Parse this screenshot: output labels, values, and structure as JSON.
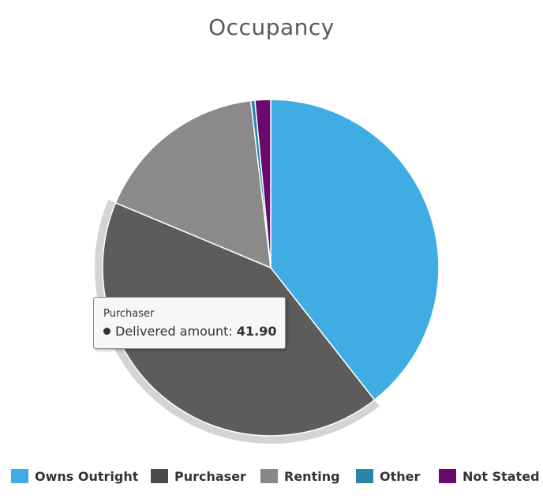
{
  "chart_data": {
    "type": "pie",
    "title": "Occupancy",
    "slices": [
      {
        "label": "Owns Outright",
        "value": 39.4,
        "color": "#3fade3"
      },
      {
        "label": "Purchaser",
        "value": 41.9,
        "color": "#5c5c5c"
      },
      {
        "label": "Renting",
        "value": 16.8,
        "color": "#8a8a8a"
      },
      {
        "label": "Other",
        "value": 0.4,
        "color": "#2b84aa"
      },
      {
        "label": "Not Stated",
        "value": 1.5,
        "color": "#6a0a6e"
      }
    ],
    "start_angle_deg": 0,
    "direction": "clockwise",
    "highlighted": "Purchaser",
    "legend_position": "bottom"
  },
  "tooltip": {
    "title": "Purchaser",
    "metric_label": "Delivered amount:",
    "value": "41.90"
  },
  "legend": {
    "items": [
      {
        "label": "Owns Outright",
        "color": "#3fade3"
      },
      {
        "label": "Purchaser",
        "color": "#4a4a4a"
      },
      {
        "label": "Renting",
        "color": "#888888"
      },
      {
        "label": "Other",
        "color": "#2b84aa"
      },
      {
        "label": "Not Stated",
        "color": "#6a0a6e"
      }
    ]
  }
}
